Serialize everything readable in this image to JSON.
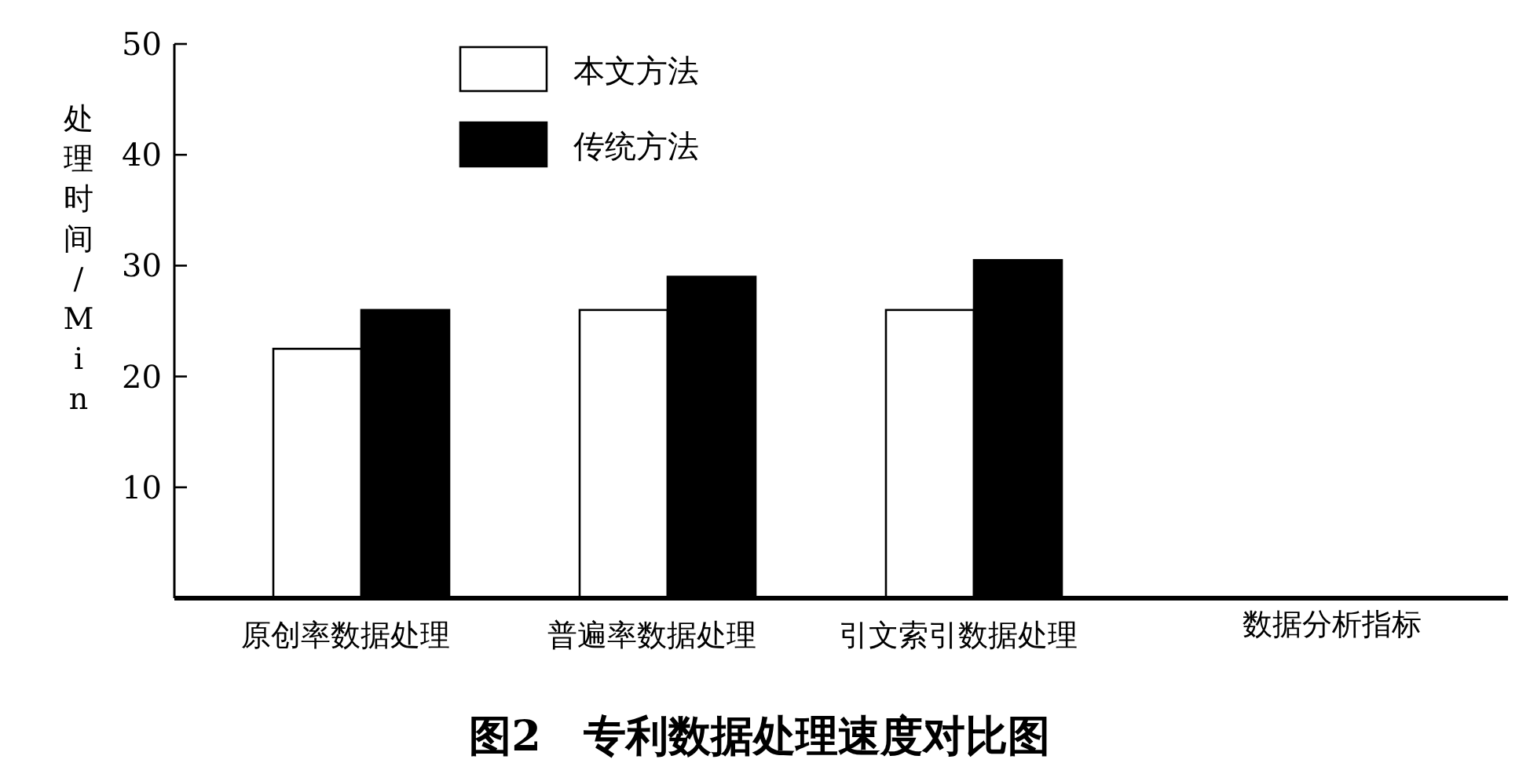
{
  "chart_data": {
    "type": "bar",
    "title": "图2　专利数据处理速度对比图",
    "xlabel": "数据分析指标",
    "ylabel": "处理时间/Min",
    "categories": [
      "原创率数据处理",
      "普遍率数据处理",
      "引文索引数据处理"
    ],
    "series": [
      {
        "name": "本文方法",
        "color": "#ffffff",
        "values": [
          22.5,
          26,
          26
        ]
      },
      {
        "name": "传统方法",
        "color": "#000000",
        "values": [
          26,
          29,
          30.5
        ]
      }
    ],
    "ylim": [
      0,
      50
    ],
    "yticks": [
      10,
      20,
      30,
      40,
      50
    ],
    "legend": "top",
    "grid": false
  }
}
